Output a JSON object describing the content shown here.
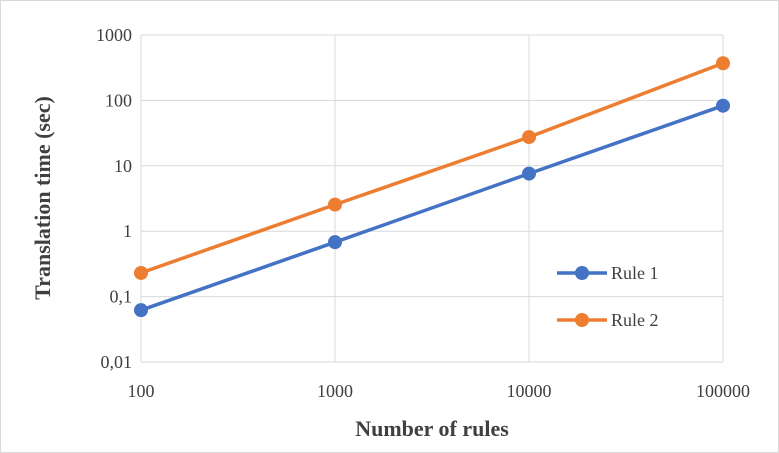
{
  "chart_data": {
    "type": "line",
    "xscale": "log",
    "yscale": "log",
    "x": [
      100,
      1000,
      10000,
      100000
    ],
    "x_tick_labels": [
      "100",
      "1000",
      "10000",
      "100000"
    ],
    "y_tick_values": [
      0.01,
      0.1,
      1,
      10,
      100,
      1000
    ],
    "y_tick_labels": [
      "0,01",
      "0,1",
      "1",
      "10",
      "100",
      "1000"
    ],
    "xlim": [
      100,
      100000
    ],
    "ylim": [
      0.01,
      1000
    ],
    "xlabel": "Number of rules",
    "ylabel": "Translation time (sec)",
    "grid": true,
    "legend_position": "right",
    "series": [
      {
        "name": "Rule 1",
        "color": "#4472C4",
        "values": [
          0.062,
          0.68,
          7.6,
          83
        ]
      },
      {
        "name": "Rule 2",
        "color": "#ED7D31",
        "values": [
          0.23,
          2.55,
          27.5,
          370
        ]
      }
    ]
  }
}
